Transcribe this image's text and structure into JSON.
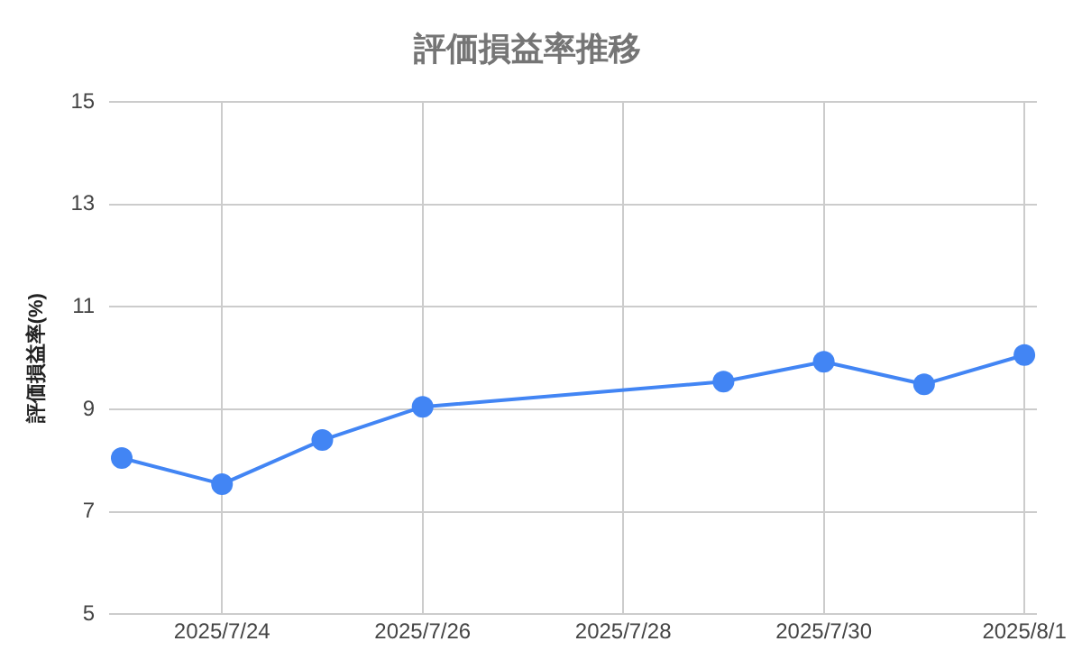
{
  "chart_data": {
    "type": "line",
    "title": "評価損益率推移",
    "ylabel": "評価損益率(%)",
    "x": [
      "2025-07-23",
      "2025-07-24",
      "2025-07-25",
      "2025-07-26",
      "2025-07-29",
      "2025-07-30",
      "2025-07-31",
      "2025-08-01"
    ],
    "series": [
      {
        "color": "#4285f4",
        "values": [
          8.05,
          7.54,
          8.4,
          9.05,
          9.54,
          9.93,
          9.49,
          10.06
        ]
      }
    ],
    "xlim": [
      "2025-07-22T21:00",
      "2025-08-01T03:00"
    ],
    "xticks": [
      {
        "value": "2025-07-24",
        "label": "2025/7/24"
      },
      {
        "value": "2025-07-26",
        "label": "2025/7/26"
      },
      {
        "value": "2025-07-28",
        "label": "2025/7/28"
      },
      {
        "value": "2025-07-30",
        "label": "2025/7/30"
      },
      {
        "value": "2025-08-01",
        "label": "2025/8/1"
      }
    ],
    "ylim": [
      5,
      15
    ],
    "yticks": [
      5,
      7,
      9,
      11,
      13,
      15
    ],
    "grid": true,
    "legend": false,
    "marker": "circle",
    "line_style": "solid"
  }
}
